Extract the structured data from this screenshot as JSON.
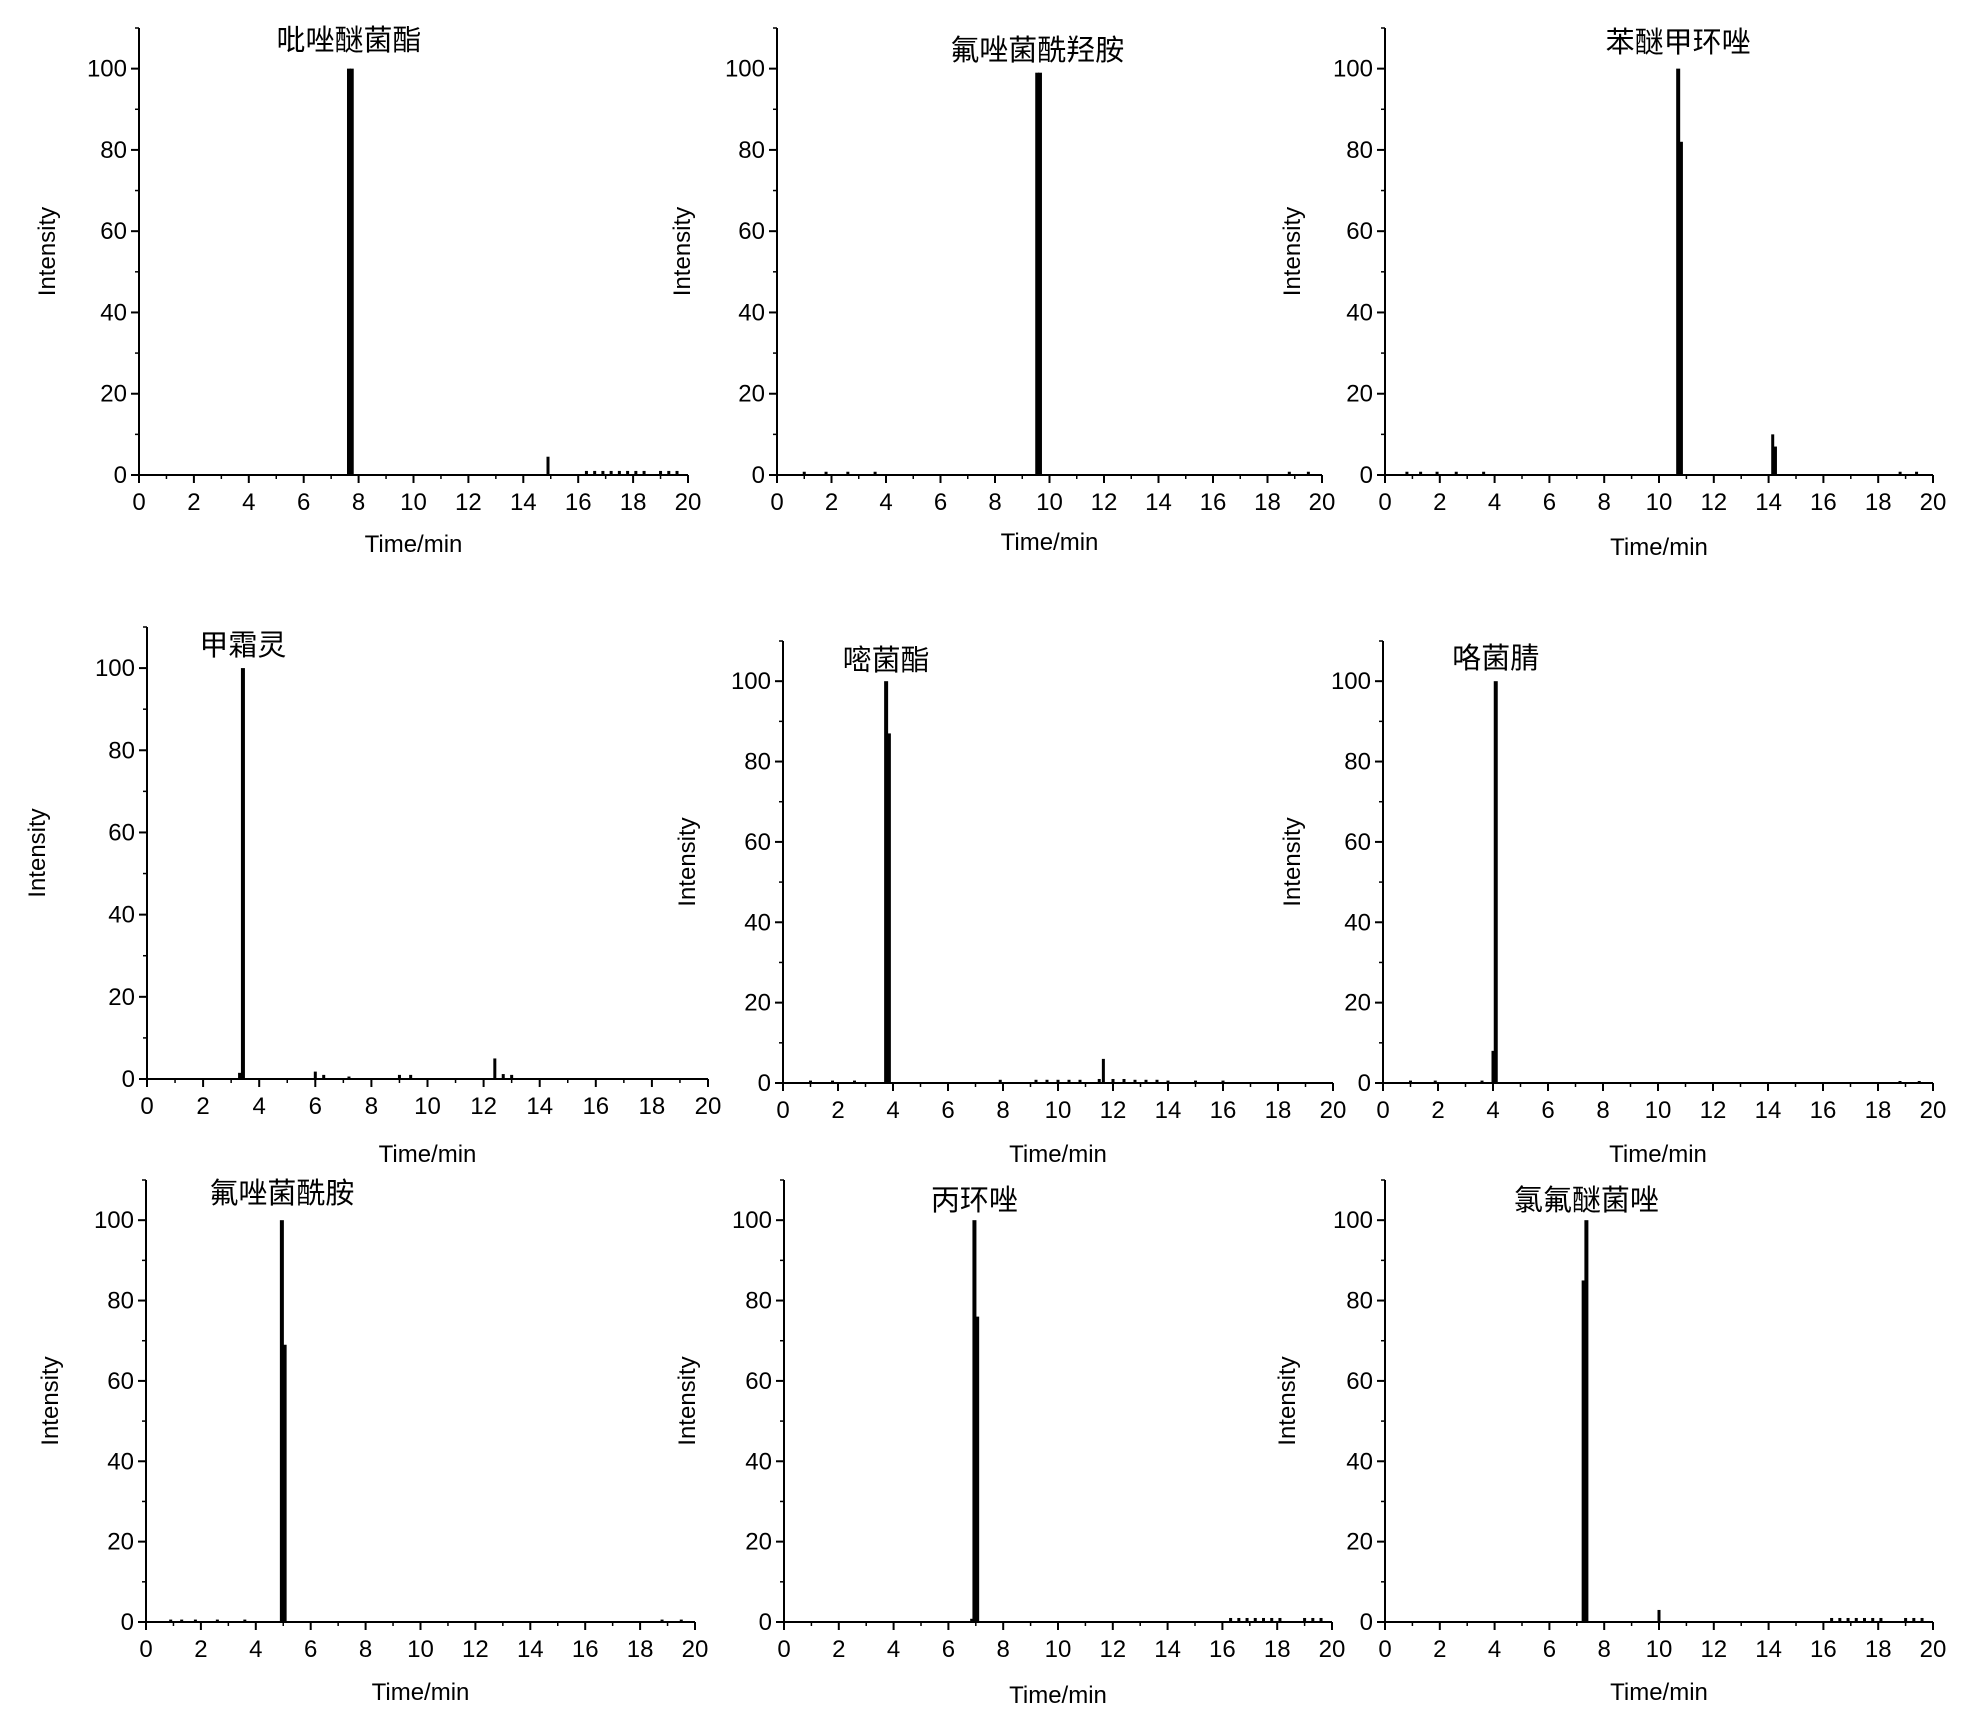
{
  "chart_data": [
    {
      "type": "bar",
      "title": "吡唑醚菌酯",
      "xlabel": "Time/min",
      "ylabel": "Intensity",
      "xlim": [
        0,
        20
      ],
      "ylim": [
        0,
        110
      ],
      "xticks": [
        0,
        2,
        4,
        6,
        8,
        10,
        12,
        14,
        16,
        18,
        20
      ],
      "yticks": [
        0,
        20,
        40,
        60,
        80,
        100
      ],
      "points": [
        {
          "x": 7.65,
          "y": 100
        },
        {
          "x": 7.75,
          "y": 100
        },
        {
          "x": 14.9,
          "y": 4.5
        },
        {
          "x": 16.3,
          "y": 1
        },
        {
          "x": 16.6,
          "y": 1
        },
        {
          "x": 16.9,
          "y": 1
        },
        {
          "x": 17.2,
          "y": 1
        },
        {
          "x": 17.5,
          "y": 1
        },
        {
          "x": 17.8,
          "y": 1
        },
        {
          "x": 18.1,
          "y": 1
        },
        {
          "x": 18.4,
          "y": 1
        },
        {
          "x": 19.0,
          "y": 1
        },
        {
          "x": 19.3,
          "y": 1
        },
        {
          "x": 19.6,
          "y": 1
        }
      ]
    },
    {
      "type": "bar",
      "title": "氟唑菌酰羟胺",
      "xlabel": "Time/min",
      "ylabel": "Intensity",
      "xlim": [
        0,
        20
      ],
      "ylim": [
        0,
        110
      ],
      "xticks": [
        0,
        2,
        4,
        6,
        8,
        10,
        12,
        14,
        16,
        18,
        20
      ],
      "yticks": [
        0,
        20,
        40,
        60,
        80,
        100
      ],
      "points": [
        {
          "x": 1.0,
          "y": 0.8
        },
        {
          "x": 1.8,
          "y": 0.8
        },
        {
          "x": 2.6,
          "y": 0.8
        },
        {
          "x": 3.6,
          "y": 0.8
        },
        {
          "x": 9.55,
          "y": 99
        },
        {
          "x": 9.65,
          "y": 99
        },
        {
          "x": 18.8,
          "y": 0.8
        },
        {
          "x": 19.5,
          "y": 0.8
        }
      ]
    },
    {
      "type": "bar",
      "title": "苯醚甲环唑",
      "xlabel": "Time/min",
      "ylabel": "Intensity",
      "xlim": [
        0,
        20
      ],
      "ylim": [
        0,
        110
      ],
      "xticks": [
        0,
        2,
        4,
        6,
        8,
        10,
        12,
        14,
        16,
        18,
        20
      ],
      "yticks": [
        0,
        20,
        40,
        60,
        80,
        100
      ],
      "points": [
        {
          "x": 0.8,
          "y": 0.8
        },
        {
          "x": 1.3,
          "y": 0.8
        },
        {
          "x": 1.9,
          "y": 0.8
        },
        {
          "x": 2.6,
          "y": 0.8
        },
        {
          "x": 3.6,
          "y": 0.8
        },
        {
          "x": 10.7,
          "y": 100
        },
        {
          "x": 10.8,
          "y": 82
        },
        {
          "x": 14.15,
          "y": 10
        },
        {
          "x": 14.25,
          "y": 7
        },
        {
          "x": 18.8,
          "y": 0.8
        },
        {
          "x": 19.4,
          "y": 0.8
        }
      ]
    },
    {
      "type": "bar",
      "title": "甲霜灵",
      "xlabel": "Time/min",
      "ylabel": "Intensity",
      "xlim": [
        0,
        20
      ],
      "ylim": [
        0,
        110
      ],
      "xticks": [
        0,
        2,
        4,
        6,
        8,
        10,
        12,
        14,
        16,
        18,
        20
      ],
      "yticks": [
        0,
        20,
        40,
        60,
        80,
        100
      ],
      "points": [
        {
          "x": 3.3,
          "y": 1.5
        },
        {
          "x": 3.42,
          "y": 100
        },
        {
          "x": 6.0,
          "y": 1.8
        },
        {
          "x": 6.3,
          "y": 1
        },
        {
          "x": 7.2,
          "y": 0.6
        },
        {
          "x": 9.0,
          "y": 1
        },
        {
          "x": 9.4,
          "y": 1
        },
        {
          "x": 12.4,
          "y": 5
        },
        {
          "x": 12.7,
          "y": 1.2
        },
        {
          "x": 13.0,
          "y": 1
        }
      ]
    },
    {
      "type": "bar",
      "title": "嘧菌酯",
      "xlabel": "Time/min",
      "ylabel": "Intensity",
      "xlim": [
        0,
        20
      ],
      "ylim": [
        0,
        110
      ],
      "xticks": [
        0,
        2,
        4,
        6,
        8,
        10,
        12,
        14,
        16,
        18,
        20
      ],
      "yticks": [
        0,
        20,
        40,
        60,
        80,
        100
      ],
      "points": [
        {
          "x": 1.0,
          "y": 0.6
        },
        {
          "x": 1.8,
          "y": 0.6
        },
        {
          "x": 2.6,
          "y": 0.6
        },
        {
          "x": 3.75,
          "y": 100
        },
        {
          "x": 3.85,
          "y": 87
        },
        {
          "x": 7.9,
          "y": 0.8
        },
        {
          "x": 9.2,
          "y": 0.8
        },
        {
          "x": 9.6,
          "y": 0.8
        },
        {
          "x": 10.0,
          "y": 0.8
        },
        {
          "x": 10.4,
          "y": 0.8
        },
        {
          "x": 10.8,
          "y": 0.8
        },
        {
          "x": 11.5,
          "y": 1
        },
        {
          "x": 11.65,
          "y": 6
        },
        {
          "x": 12.0,
          "y": 1
        },
        {
          "x": 12.4,
          "y": 1
        },
        {
          "x": 12.8,
          "y": 0.8
        },
        {
          "x": 13.2,
          "y": 0.8
        },
        {
          "x": 13.6,
          "y": 0.8
        },
        {
          "x": 14.0,
          "y": 0.6
        },
        {
          "x": 15.0,
          "y": 0.6
        },
        {
          "x": 16.0,
          "y": 0.6
        }
      ]
    },
    {
      "type": "bar",
      "title": "咯菌腈",
      "xlabel": "Time/min",
      "ylabel": "Intensity",
      "xlim": [
        0,
        20
      ],
      "ylim": [
        0,
        110
      ],
      "xticks": [
        0,
        2,
        4,
        6,
        8,
        10,
        12,
        14,
        16,
        18,
        20
      ],
      "yticks": [
        0,
        20,
        40,
        60,
        80,
        100
      ],
      "points": [
        {
          "x": 1.0,
          "y": 0.6
        },
        {
          "x": 1.9,
          "y": 0.6
        },
        {
          "x": 3.6,
          "y": 0.6
        },
        {
          "x": 4.0,
          "y": 8
        },
        {
          "x": 4.1,
          "y": 100
        },
        {
          "x": 18.8,
          "y": 0.5
        },
        {
          "x": 19.5,
          "y": 0.5
        }
      ]
    },
    {
      "type": "bar",
      "title": "氟唑菌酰胺",
      "xlabel": "Time/min",
      "ylabel": "Intensity",
      "xlim": [
        0,
        20
      ],
      "ylim": [
        0,
        110
      ],
      "xticks": [
        0,
        2,
        4,
        6,
        8,
        10,
        12,
        14,
        16,
        18,
        20
      ],
      "yticks": [
        0,
        20,
        40,
        60,
        80,
        100
      ],
      "points": [
        {
          "x": 0.9,
          "y": 0.6
        },
        {
          "x": 1.3,
          "y": 0.6
        },
        {
          "x": 1.8,
          "y": 0.6
        },
        {
          "x": 2.6,
          "y": 0.6
        },
        {
          "x": 3.6,
          "y": 0.6
        },
        {
          "x": 4.95,
          "y": 100
        },
        {
          "x": 5.05,
          "y": 69
        },
        {
          "x": 18.8,
          "y": 0.6
        },
        {
          "x": 19.5,
          "y": 0.6
        }
      ]
    },
    {
      "type": "bar",
      "title": "丙环唑",
      "xlabel": "Time/min",
      "ylabel": "Intensity",
      "xlim": [
        0,
        20
      ],
      "ylim": [
        0,
        110
      ],
      "xticks": [
        0,
        2,
        4,
        6,
        8,
        10,
        12,
        14,
        16,
        18,
        20
      ],
      "yticks": [
        0,
        20,
        40,
        60,
        80,
        100
      ],
      "points": [
        {
          "x": 6.85,
          "y": 0.8
        },
        {
          "x": 6.95,
          "y": 100
        },
        {
          "x": 7.05,
          "y": 76
        },
        {
          "x": 16.3,
          "y": 1
        },
        {
          "x": 16.6,
          "y": 1
        },
        {
          "x": 16.9,
          "y": 1
        },
        {
          "x": 17.2,
          "y": 1
        },
        {
          "x": 17.5,
          "y": 1
        },
        {
          "x": 17.8,
          "y": 1
        },
        {
          "x": 18.1,
          "y": 1
        },
        {
          "x": 19.0,
          "y": 1
        },
        {
          "x": 19.3,
          "y": 1
        },
        {
          "x": 19.6,
          "y": 1
        }
      ]
    },
    {
      "type": "bar",
      "title": "氯氟醚菌唑",
      "xlabel": "Time/min",
      "ylabel": "Intensity",
      "xlim": [
        0,
        20
      ],
      "ylim": [
        0,
        110
      ],
      "xticks": [
        0,
        2,
        4,
        6,
        8,
        10,
        12,
        14,
        16,
        18,
        20
      ],
      "yticks": [
        0,
        20,
        40,
        60,
        80,
        100
      ],
      "points": [
        {
          "x": 7.25,
          "y": 85
        },
        {
          "x": 7.35,
          "y": 100
        },
        {
          "x": 10.0,
          "y": 3
        },
        {
          "x": 16.3,
          "y": 1
        },
        {
          "x": 16.6,
          "y": 1
        },
        {
          "x": 16.9,
          "y": 1
        },
        {
          "x": 17.2,
          "y": 1
        },
        {
          "x": 17.5,
          "y": 1
        },
        {
          "x": 17.8,
          "y": 1
        },
        {
          "x": 18.1,
          "y": 1
        },
        {
          "x": 19.0,
          "y": 1
        },
        {
          "x": 19.3,
          "y": 1
        },
        {
          "x": 19.6,
          "y": 1
        }
      ]
    }
  ]
}
